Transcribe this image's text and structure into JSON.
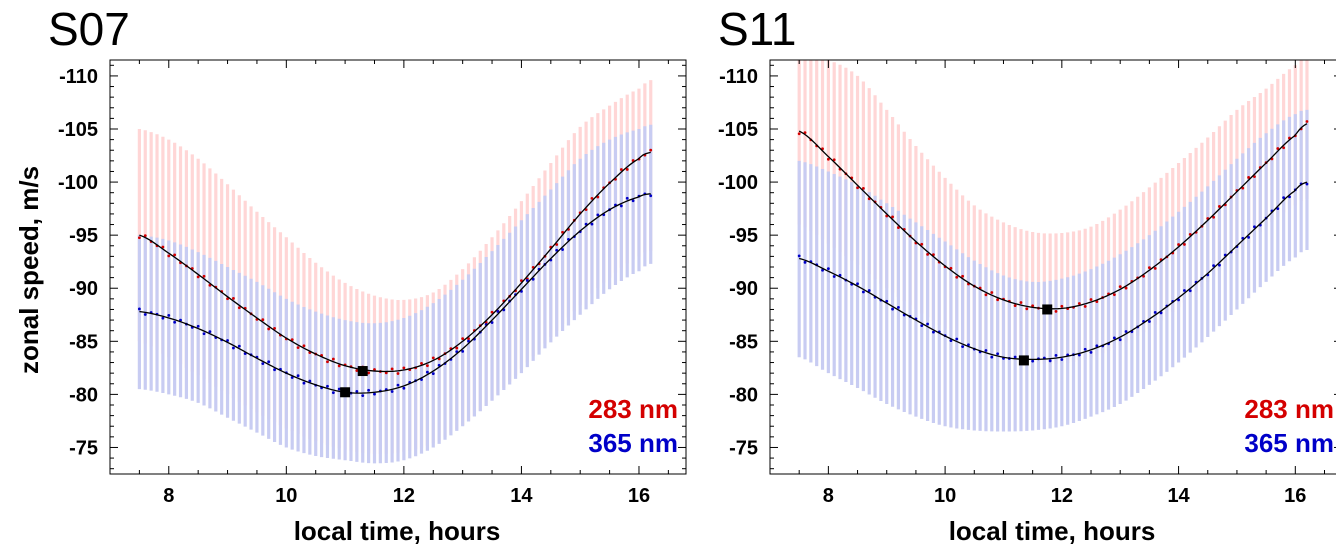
{
  "ylabel": "zonal speed, m/s",
  "colors": {
    "s283": "#d40000",
    "s365": "#0000c8",
    "err283": "#ffd6d6",
    "err365": "#c8ccf2"
  },
  "chart_data": [
    {
      "type": "line",
      "title": "S07",
      "xlabel": "local time, hours",
      "ylabel": "zonal speed, m/s",
      "xlim": [
        7.0,
        16.8
      ],
      "ylim": [
        -72.5,
        -111.5
      ],
      "xticks": [
        "8",
        "10",
        "12",
        "14",
        "16"
      ],
      "yticks": [
        "-110",
        "-105",
        "-100",
        "-95",
        "-90",
        "-85",
        "-80",
        "-75"
      ],
      "grid": false,
      "legend": "bottom-right",
      "series": [
        {
          "name": "283 nm",
          "x": [
            7.5,
            8.0,
            8.5,
            9.0,
            9.5,
            10.0,
            10.5,
            11.0,
            11.5,
            12.0,
            12.5,
            13.0,
            13.5,
            14.0,
            14.5,
            15.0,
            15.5,
            16.0,
            16.2
          ],
          "values": [
            -95.0,
            -93.3,
            -91.3,
            -89.2,
            -87.2,
            -85.3,
            -83.8,
            -82.7,
            -82.2,
            -82.3,
            -83.2,
            -85.0,
            -87.5,
            -90.5,
            -93.7,
            -97.0,
            -99.9,
            -102.2,
            -102.8
          ],
          "err_lo": [
            -85.0,
            -83.5,
            -81.8,
            -80.0,
            -78.3,
            -76.8,
            -75.6,
            -74.8,
            -74.4,
            -74.6,
            -75.4,
            -77.1,
            -79.5,
            -82.4,
            -85.4,
            -88.4,
            -91.0,
            -93.0,
            -93.5
          ],
          "err_hi": [
            -105.0,
            -104.0,
            -102.2,
            -99.8,
            -97.2,
            -94.8,
            -92.4,
            -90.5,
            -89.3,
            -88.9,
            -89.6,
            -91.8,
            -94.8,
            -98.2,
            -101.8,
            -105.2,
            -107.2,
            -108.8,
            -109.6
          ]
        },
        {
          "name": "365 nm",
          "x": [
            7.5,
            8.0,
            8.5,
            9.0,
            9.5,
            10.0,
            10.5,
            11.0,
            11.5,
            12.0,
            12.5,
            13.0,
            13.5,
            14.0,
            14.5,
            15.0,
            15.5,
            16.0,
            16.2
          ],
          "values": [
            -87.8,
            -87.2,
            -86.2,
            -84.9,
            -83.4,
            -82.0,
            -80.9,
            -80.2,
            -80.2,
            -80.8,
            -82.2,
            -84.3,
            -87.0,
            -89.9,
            -92.8,
            -95.4,
            -97.4,
            -98.6,
            -98.9
          ],
          "err_lo": [
            -80.5,
            -80.0,
            -79.2,
            -77.8,
            -76.4,
            -75.0,
            -74.2,
            -73.8,
            -73.5,
            -73.8,
            -75.0,
            -77.0,
            -79.4,
            -82.0,
            -84.9,
            -87.5,
            -89.9,
            -91.6,
            -92.3
          ],
          "err_hi": [
            -95.0,
            -94.5,
            -93.4,
            -92.0,
            -90.6,
            -89.0,
            -87.8,
            -87.0,
            -86.7,
            -87.2,
            -88.6,
            -90.8,
            -93.5,
            -96.4,
            -99.3,
            -102.2,
            -104.0,
            -105.0,
            -105.4
          ]
        }
      ],
      "markers": [
        {
          "series": "283 nm",
          "x": 11.3,
          "y": -82.2
        },
        {
          "series": "365 nm",
          "x": 11.0,
          "y": -80.2
        }
      ]
    },
    {
      "type": "line",
      "title": "S11",
      "xlabel": "local time, hours",
      "ylabel": "",
      "xlim": [
        7.0,
        16.8
      ],
      "ylim": [
        -72.5,
        -111.5
      ],
      "xticks": [
        "8",
        "10",
        "12",
        "14",
        "16"
      ],
      "yticks": [
        "-110",
        "-105",
        "-100",
        "-95",
        "-90",
        "-85",
        "-80",
        "-75"
      ],
      "grid": false,
      "legend": "bottom-right",
      "series": [
        {
          "name": "283 nm",
          "x": [
            7.5,
            8.0,
            8.5,
            9.0,
            9.5,
            10.0,
            10.5,
            11.0,
            11.5,
            12.0,
            12.5,
            13.0,
            13.5,
            14.0,
            14.5,
            15.0,
            15.5,
            16.0,
            16.2
          ],
          "values": [
            -104.8,
            -102.4,
            -99.7,
            -97.0,
            -94.4,
            -92.1,
            -90.2,
            -88.9,
            -88.2,
            -88.1,
            -88.7,
            -89.9,
            -91.7,
            -93.9,
            -96.4,
            -99.1,
            -101.8,
            -104.4,
            -105.5
          ],
          "err_lo": [
            -96.0,
            -94.2,
            -92.2,
            -90.0,
            -88.0,
            -86.2,
            -84.6,
            -83.6,
            -83.0,
            -82.9,
            -83.5,
            -84.6,
            -86.2,
            -88.2,
            -90.6,
            -93.2,
            -95.8,
            -97.8,
            -98.4
          ],
          "err_hi": [
            -112.0,
            -111.5,
            -110.0,
            -106.8,
            -103.4,
            -100.4,
            -97.8,
            -96.2,
            -95.3,
            -95.2,
            -95.8,
            -97.4,
            -99.5,
            -101.8,
            -104.2,
            -106.8,
            -108.8,
            -111.0,
            -112.0
          ]
        },
        {
          "name": "365 nm",
          "x": [
            7.5,
            8.0,
            8.5,
            9.0,
            9.5,
            10.0,
            10.5,
            11.0,
            11.5,
            12.0,
            12.5,
            13.0,
            13.5,
            14.0,
            14.5,
            15.0,
            15.5,
            16.0,
            16.2
          ],
          "values": [
            -92.8,
            -91.6,
            -90.2,
            -88.6,
            -87.0,
            -85.5,
            -84.3,
            -83.5,
            -83.3,
            -83.5,
            -84.2,
            -85.4,
            -87.1,
            -89.1,
            -91.4,
            -94.0,
            -96.6,
            -99.2,
            -100.0
          ],
          "err_lo": [
            -83.5,
            -82.0,
            -80.6,
            -79.1,
            -77.9,
            -77.0,
            -76.6,
            -76.5,
            -76.6,
            -77.0,
            -77.9,
            -79.1,
            -80.9,
            -83.0,
            -85.4,
            -88.0,
            -90.6,
            -92.9,
            -93.6
          ],
          "err_hi": [
            -102.0,
            -101.0,
            -99.7,
            -98.0,
            -96.2,
            -94.4,
            -92.6,
            -91.2,
            -90.6,
            -90.9,
            -91.8,
            -93.2,
            -95.0,
            -97.2,
            -99.6,
            -102.2,
            -104.6,
            -106.4,
            -106.8
          ]
        }
      ],
      "markers": [
        {
          "series": "283 nm",
          "x": 11.75,
          "y": -88.0
        },
        {
          "series": "365 nm",
          "x": 11.35,
          "y": -83.2
        }
      ]
    }
  ]
}
